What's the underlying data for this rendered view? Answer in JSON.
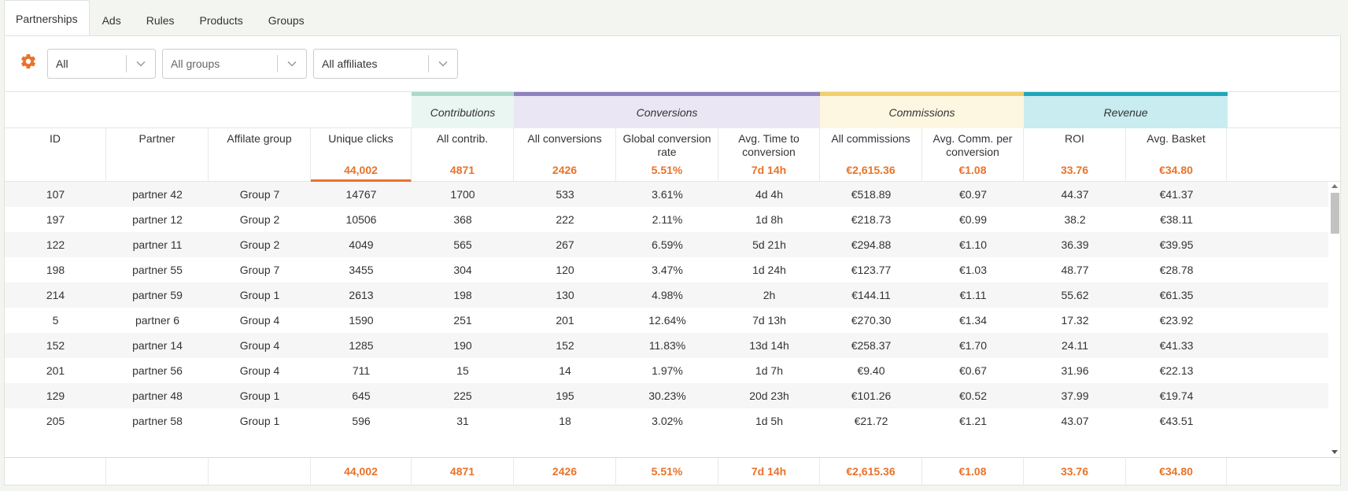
{
  "tabs": [
    "Partnerships",
    "Ads",
    "Rules",
    "Products",
    "Groups"
  ],
  "filters": {
    "status": "All",
    "groups": "All groups",
    "affiliates": "All affiliates"
  },
  "colors": {
    "accent": "#e8732a",
    "contributions": "#a9dcc8",
    "conversions": "#8f82bf",
    "commissions": "#f2cf6b",
    "revenue": "#1fa7b8"
  },
  "groups": [
    {
      "label": "Contributions",
      "bg": "#eaf6f1",
      "color": "#a9dcc8"
    },
    {
      "label": "Conversions",
      "bg": "#eae6f3",
      "color": "#8f82bf"
    },
    {
      "label": "Commissions",
      "bg": "#fdf6e1",
      "color": "#f2cf6b"
    },
    {
      "label": "Revenue",
      "bg": "#c8ecf0",
      "color": "#1fa7b8"
    }
  ],
  "columns": [
    {
      "label": "ID",
      "total": ""
    },
    {
      "label": "Partner",
      "total": ""
    },
    {
      "label": "Affilate group",
      "total": ""
    },
    {
      "label": "Unique clicks",
      "total": "44,002"
    },
    {
      "label": "All contrib.",
      "total": "4871"
    },
    {
      "label": "All conversions",
      "total": "2426"
    },
    {
      "label": "Global conversion rate",
      "total": "5.51%"
    },
    {
      "label": "Avg. Time to conversion",
      "total": "7d 14h"
    },
    {
      "label": "All commissions",
      "total": "€2,615.36"
    },
    {
      "label": "Avg. Comm. per conversion",
      "total": "€1.08"
    },
    {
      "label": "ROI",
      "total": "33.76"
    },
    {
      "label": "Avg. Basket",
      "total": "€34.80"
    }
  ],
  "rows": [
    [
      "107",
      "partner 42",
      "Group 7",
      "14767",
      "1700",
      "533",
      "3.61%",
      "4d 4h",
      "€518.89",
      "€0.97",
      "44.37",
      "€41.37"
    ],
    [
      "197",
      "partner 12",
      "Group 2",
      "10506",
      "368",
      "222",
      "2.11%",
      "1d 8h",
      "€218.73",
      "€0.99",
      "38.2",
      "€38.11"
    ],
    [
      "122",
      "partner 11",
      "Group 2",
      "4049",
      "565",
      "267",
      "6.59%",
      "5d 21h",
      "€294.88",
      "€1.10",
      "36.39",
      "€39.95"
    ],
    [
      "198",
      "partner 55",
      "Group 7",
      "3455",
      "304",
      "120",
      "3.47%",
      "1d 24h",
      "€123.77",
      "€1.03",
      "48.77",
      "€28.78"
    ],
    [
      "214",
      "partner 59",
      "Group 1",
      "2613",
      "198",
      "130",
      "4.98%",
      "2h",
      "€144.11",
      "€1.11",
      "55.62",
      "€61.35"
    ],
    [
      "5",
      "partner 6",
      "Group 4",
      "1590",
      "251",
      "201",
      "12.64%",
      "7d 13h",
      "€270.30",
      "€1.34",
      "17.32",
      "€23.92"
    ],
    [
      "152",
      "partner 14",
      "Group 4",
      "1285",
      "190",
      "152",
      "11.83%",
      "13d 14h",
      "€258.37",
      "€1.70",
      "24.11",
      "€41.33"
    ],
    [
      "201",
      "partner 56",
      "Group 4",
      "711",
      "15",
      "14",
      "1.97%",
      "1d 7h",
      "€9.40",
      "€0.67",
      "31.96",
      "€22.13"
    ],
    [
      "129",
      "partner 48",
      "Group 1",
      "645",
      "225",
      "195",
      "30.23%",
      "20d 23h",
      "€101.26",
      "€0.52",
      "37.99",
      "€19.74"
    ],
    [
      "205",
      "partner 58",
      "Group 1",
      "596",
      "31",
      "18",
      "3.02%",
      "1d 5h",
      "€21.72",
      "€1.21",
      "43.07",
      "€43.51"
    ]
  ],
  "footer": [
    "",
    "",
    "",
    "44,002",
    "4871",
    "2426",
    "5.51%",
    "7d 14h",
    "€2,615.36",
    "€1.08",
    "33.76",
    "€34.80"
  ]
}
